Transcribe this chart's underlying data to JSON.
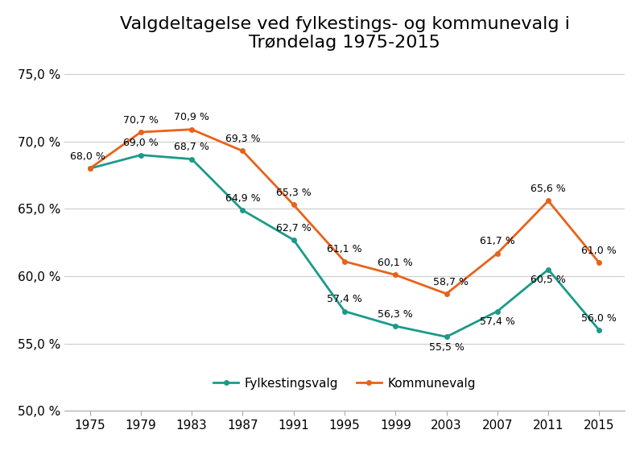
{
  "title": "Valgdeltagelse ved fylkestings- og kommunevalg i\nTrøndelag 1975-2015",
  "years": [
    1975,
    1979,
    1983,
    1987,
    1991,
    1995,
    1999,
    2003,
    2007,
    2011,
    2015
  ],
  "fylkestingsvalg": [
    68.0,
    69.0,
    68.7,
    64.9,
    62.7,
    57.4,
    56.3,
    55.5,
    57.4,
    60.5,
    56.0
  ],
  "kommunevalg": [
    68.0,
    70.7,
    70.9,
    69.3,
    65.3,
    61.1,
    60.1,
    58.7,
    61.7,
    65.6,
    61.0
  ],
  "fylkestingsvalg_labels": [
    "68,0 %",
    "69,0 %",
    "68,7 %",
    "64,9 %",
    "62,7 %",
    "57,4 %",
    "56,3 %",
    "55,5 %",
    "57,4 %",
    "60,5 %",
    "56,0 %"
  ],
  "kommunevalg_labels": [
    "",
    "70,7 %",
    "70,9 %",
    "69,3 %",
    "65,3 %",
    "61,1 %",
    "60,1 %",
    "58,7 %",
    "61,7 %",
    "65,6 %",
    "61,0 %"
  ],
  "fylkestingsvalg_color": "#1a9a8a",
  "kommunevalg_color": "#e8621a",
  "ylim": [
    50.0,
    76.0
  ],
  "yticks": [
    50.0,
    55.0,
    60.0,
    65.0,
    70.0,
    75.0
  ],
  "legend_labels": [
    "Fylkestingsvalg",
    "Kommunevalg"
  ],
  "background_color": "#ffffff",
  "grid_color": "#cccccc",
  "title_fontsize": 16,
  "label_fontsize": 9,
  "axis_fontsize": 11,
  "legend_fontsize": 11
}
